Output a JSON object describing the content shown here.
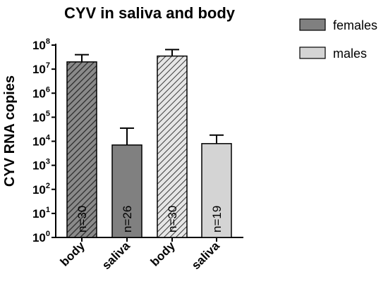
{
  "chart_data": {
    "type": "bar",
    "title": "CYV in saliva and body",
    "ylabel": "CYV RNA copies",
    "xlabel": "",
    "yscale": "log",
    "ylim": [
      1,
      100000000
    ],
    "y_ticks": [
      {
        "base": "10",
        "exp": "0"
      },
      {
        "base": "10",
        "exp": "1"
      },
      {
        "base": "10",
        "exp": "2"
      },
      {
        "base": "10",
        "exp": "3"
      },
      {
        "base": "10",
        "exp": "4"
      },
      {
        "base": "10",
        "exp": "5"
      },
      {
        "base": "10",
        "exp": "6"
      },
      {
        "base": "10",
        "exp": "7"
      },
      {
        "base": "10",
        "exp": "8"
      }
    ],
    "categories": [
      "body",
      "saliva",
      "body",
      "saliva"
    ],
    "series": [
      {
        "name": "females",
        "color": "#808080"
      },
      {
        "name": "males",
        "color": "#d4d4d4"
      }
    ],
    "bars": [
      {
        "category": "body",
        "series": "females",
        "value": 20000000,
        "error_upper": 40000000,
        "n_label": "n=30",
        "fill": "#7a7a7a",
        "hatched": true
      },
      {
        "category": "saliva",
        "series": "females",
        "value": 7000,
        "error_upper": 35000,
        "n_label": "n=26",
        "fill": "#808080",
        "hatched": false
      },
      {
        "category": "body",
        "series": "males",
        "value": 35000000,
        "error_upper": 65000000,
        "n_label": "n=30",
        "fill": "#d9d9d9",
        "hatched": true
      },
      {
        "category": "saliva",
        "series": "males",
        "value": 8000,
        "error_upper": 18000,
        "n_label": "n=19",
        "fill": "#d4d4d4",
        "hatched": false
      }
    ]
  }
}
